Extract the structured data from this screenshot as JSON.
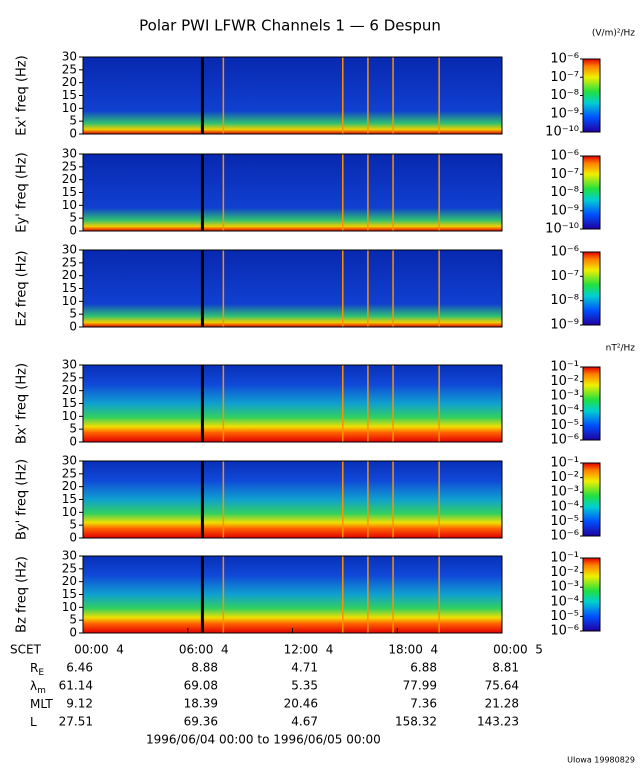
{
  "title": "Polar PWI LFWR Channels 1 — 6 Despun",
  "chart_data": [
    {
      "type": "spectrogram",
      "ylabel": "Ex' freq (Hz)",
      "ylim": [
        0,
        30
      ],
      "yticks": [
        0,
        5,
        10,
        15,
        20,
        25,
        30
      ],
      "zscale": "log",
      "zlim": [
        1e-10,
        1e-06
      ],
      "colorbar_label": "(V/m)²/Hz",
      "zticks": [
        {
          "value": 1e-06,
          "label": "10⁻⁶"
        },
        {
          "value": 1e-07,
          "label": "10⁻⁷"
        },
        {
          "value": 1e-08,
          "label": "10⁻⁸"
        },
        {
          "value": 1e-09,
          "label": "10⁻⁹"
        },
        {
          "value": 1e-10,
          "label": "10⁻¹⁰"
        }
      ]
    },
    {
      "type": "spectrogram",
      "ylabel": "Ey' freq (Hz)",
      "ylim": [
        0,
        30
      ],
      "yticks": [
        0,
        5,
        10,
        15,
        20,
        25,
        30
      ],
      "zscale": "log",
      "zlim": [
        1e-10,
        1e-06
      ],
      "zticks": [
        {
          "value": 1e-06,
          "label": "10⁻⁶"
        },
        {
          "value": 1e-07,
          "label": "10⁻⁷"
        },
        {
          "value": 1e-08,
          "label": "10⁻⁸"
        },
        {
          "value": 1e-09,
          "label": "10⁻⁹"
        },
        {
          "value": 1e-10,
          "label": "10⁻¹⁰"
        }
      ]
    },
    {
      "type": "spectrogram",
      "ylabel": "Ez freq (Hz)",
      "ylim": [
        0,
        30
      ],
      "yticks": [
        0,
        5,
        10,
        15,
        20,
        25,
        30
      ],
      "zscale": "log",
      "zlim": [
        1e-09,
        1e-06
      ],
      "zticks": [
        {
          "value": 1e-06,
          "label": "10⁻⁶"
        },
        {
          "value": 1e-07,
          "label": "10⁻⁷"
        },
        {
          "value": 1e-08,
          "label": "10⁻⁸"
        },
        {
          "value": 1e-09,
          "label": "10⁻⁹"
        }
      ]
    },
    {
      "type": "spectrogram",
      "ylabel": "Bx' freq (Hz)",
      "ylim": [
        0,
        30
      ],
      "yticks": [
        0,
        5,
        10,
        15,
        20,
        25,
        30
      ],
      "zscale": "log",
      "zlim": [
        1e-06,
        0.1
      ],
      "colorbar_label": "nT²/Hz",
      "zticks": [
        {
          "value": 0.1,
          "label": "10⁻¹"
        },
        {
          "value": 0.01,
          "label": "10⁻²"
        },
        {
          "value": 0.001,
          "label": "10⁻³"
        },
        {
          "value": 0.0001,
          "label": "10⁻⁴"
        },
        {
          "value": 1e-05,
          "label": "10⁻⁵"
        },
        {
          "value": 1e-06,
          "label": "10⁻⁶"
        }
      ]
    },
    {
      "type": "spectrogram",
      "ylabel": "By' freq (Hz)",
      "ylim": [
        0,
        30
      ],
      "yticks": [
        0,
        5,
        10,
        15,
        20,
        25,
        30
      ],
      "zscale": "log",
      "zlim": [
        1e-06,
        0.1
      ],
      "zticks": [
        {
          "value": 0.1,
          "label": "10⁻¹"
        },
        {
          "value": 0.01,
          "label": "10⁻²"
        },
        {
          "value": 0.001,
          "label": "10⁻³"
        },
        {
          "value": 0.0001,
          "label": "10⁻⁴"
        },
        {
          "value": 1e-05,
          "label": "10⁻⁵"
        },
        {
          "value": 1e-06,
          "label": "10⁻⁶"
        }
      ]
    },
    {
      "type": "spectrogram",
      "ylabel": "Bz freq (Hz)",
      "ylim": [
        0,
        30
      ],
      "yticks": [
        0,
        5,
        10,
        15,
        20,
        25,
        30
      ],
      "zscale": "log",
      "zlim": [
        1e-06,
        0.1
      ],
      "zticks": [
        {
          "value": 0.1,
          "label": "10⁻¹"
        },
        {
          "value": 0.01,
          "label": "10⁻²"
        },
        {
          "value": 0.001,
          "label": "10⁻³"
        },
        {
          "value": 0.0001,
          "label": "10⁻⁴"
        },
        {
          "value": 1e-05,
          "label": "10⁻⁵"
        },
        {
          "value": 1e-06,
          "label": "10⁻⁶"
        }
      ]
    }
  ],
  "time_axis": {
    "label": "SCET",
    "ticks": [
      "00:00  4",
      "06:00  4",
      "12:00  4",
      "18:00  4",
      "00:00  5"
    ]
  },
  "ephemeris": [
    {
      "name": "R",
      "sub": "E",
      "values": [
        6.46,
        8.88,
        4.71,
        6.88,
        8.81
      ]
    },
    {
      "name": "λ",
      "sub": "m",
      "values": [
        61.14,
        69.08,
        5.35,
        77.99,
        75.64
      ]
    },
    {
      "name": "MLT",
      "values": [
        9.12,
        18.39,
        20.46,
        7.36,
        21.28
      ]
    },
    {
      "name": "L",
      "values": [
        27.51,
        69.36,
        4.67,
        158.32,
        143.23
      ]
    }
  ],
  "date_range": "1996/06/04 00:00 to 1996/06/05 00:00",
  "footer": "UIowa 19980829"
}
